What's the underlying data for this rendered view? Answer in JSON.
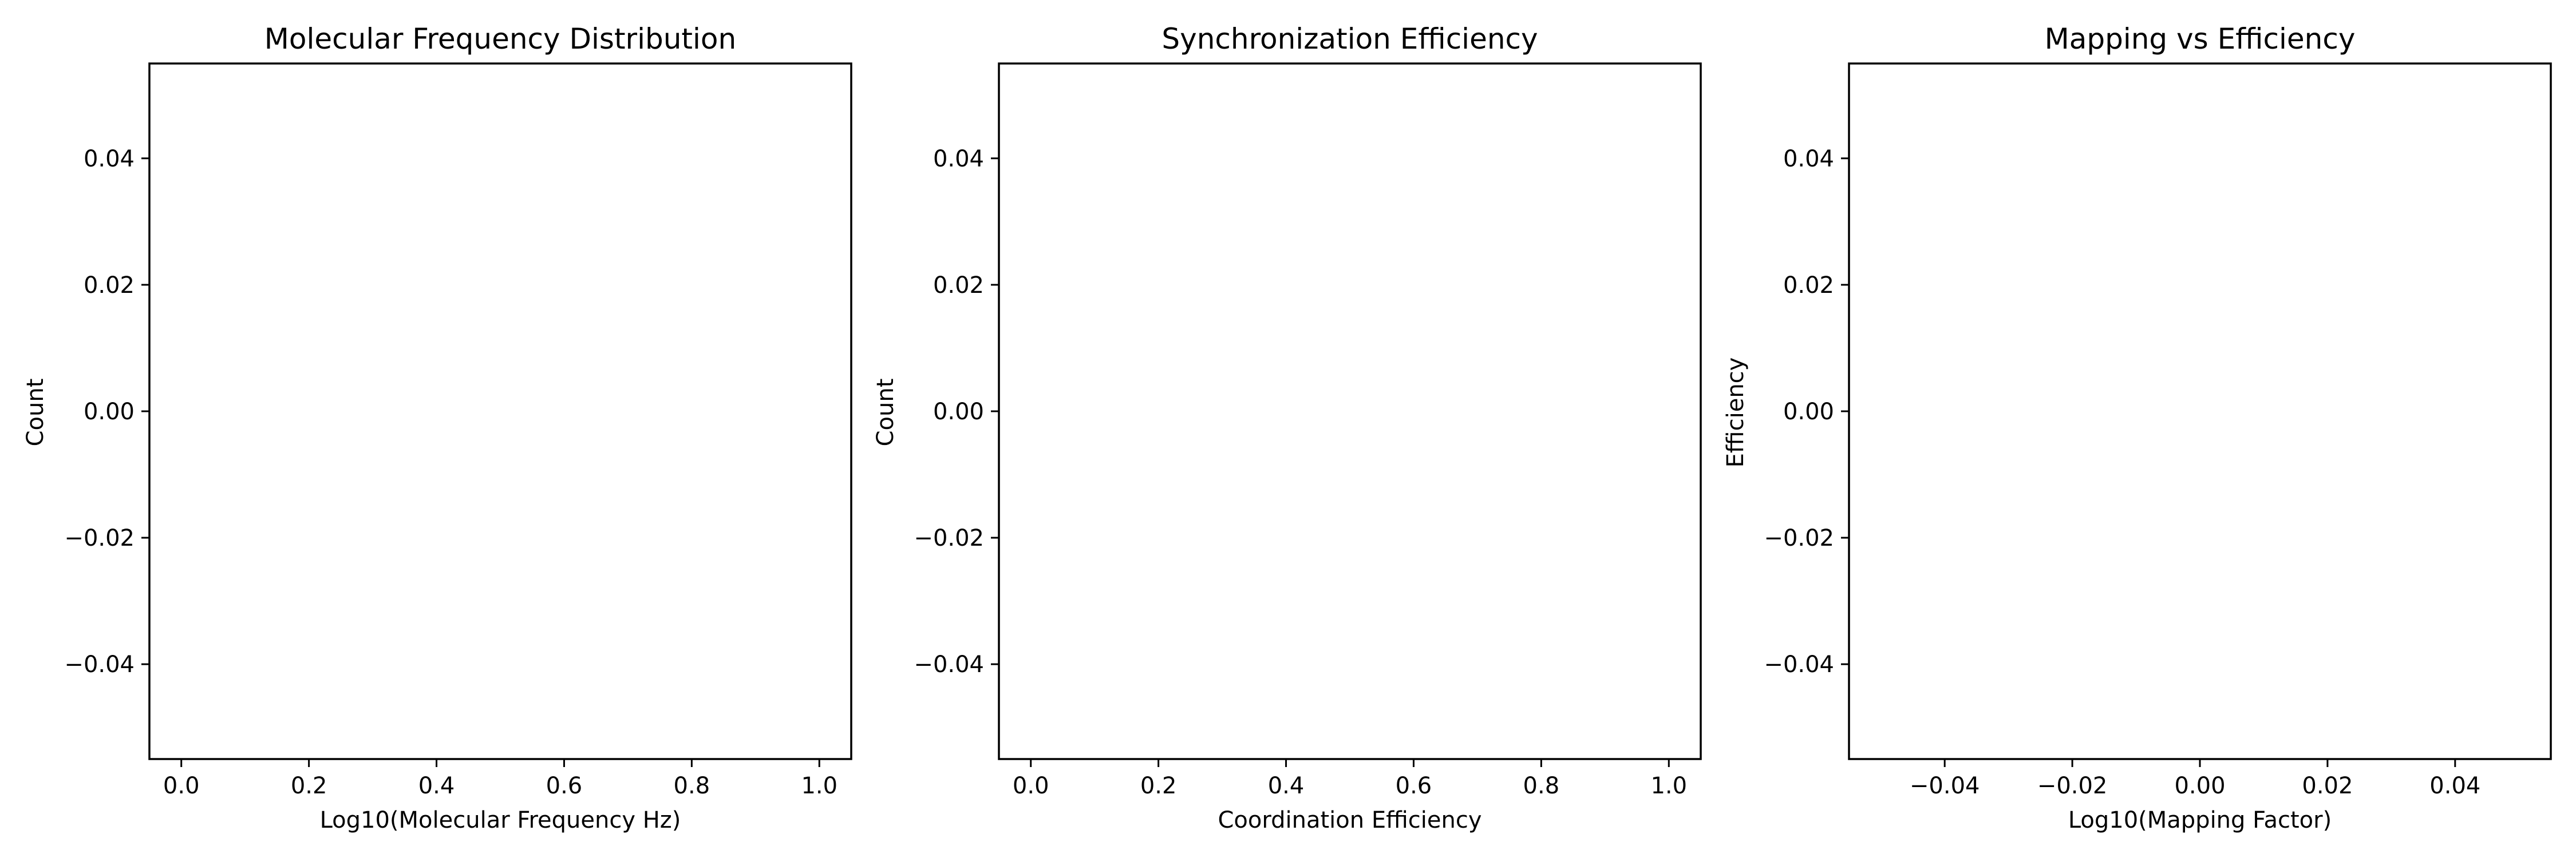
{
  "chart_data": [
    {
      "type": "bar",
      "title": "Molecular Frequency Distribution",
      "xlabel": "Log10(Molecular Frequency Hz)",
      "ylabel": "Count",
      "xlim": [
        -0.05,
        1.05
      ],
      "ylim": [
        -0.055,
        0.055
      ],
      "xticks": [
        "0.0",
        "0.2",
        "0.4",
        "0.6",
        "0.8",
        "1.0"
      ],
      "xtick_values": [
        0.0,
        0.2,
        0.4,
        0.6,
        0.8,
        1.0
      ],
      "yticks": [
        "−0.04",
        "−0.02",
        "0.00",
        "0.02",
        "0.04"
      ],
      "ytick_values": [
        -0.04,
        -0.02,
        0.0,
        0.02,
        0.04
      ],
      "grid": false,
      "series": []
    },
    {
      "type": "bar",
      "title": "Synchronization Efficiency",
      "xlabel": "Coordination Efficiency",
      "ylabel": "Count",
      "xlim": [
        -0.05,
        1.05
      ],
      "ylim": [
        -0.055,
        0.055
      ],
      "xticks": [
        "0.0",
        "0.2",
        "0.4",
        "0.6",
        "0.8",
        "1.0"
      ],
      "xtick_values": [
        0.0,
        0.2,
        0.4,
        0.6,
        0.8,
        1.0
      ],
      "yticks": [
        "−0.04",
        "−0.02",
        "0.00",
        "0.02",
        "0.04"
      ],
      "ytick_values": [
        -0.04,
        -0.02,
        0.0,
        0.02,
        0.04
      ],
      "grid": false,
      "series": []
    },
    {
      "type": "scatter",
      "title": "Mapping vs Efficiency",
      "xlabel": "Log10(Mapping Factor)",
      "ylabel": "Efficiency",
      "xlim": [
        -0.055,
        0.055
      ],
      "ylim": [
        -0.055,
        0.055
      ],
      "xticks": [
        "−0.04",
        "−0.02",
        "0.00",
        "0.02",
        "0.04"
      ],
      "xtick_values": [
        -0.04,
        -0.02,
        0.0,
        0.02,
        0.04
      ],
      "yticks": [
        "−0.04",
        "−0.02",
        "0.00",
        "0.02",
        "0.04"
      ],
      "ytick_values": [
        -0.04,
        -0.02,
        0.0,
        0.02,
        0.04
      ],
      "grid": false,
      "series": []
    }
  ]
}
